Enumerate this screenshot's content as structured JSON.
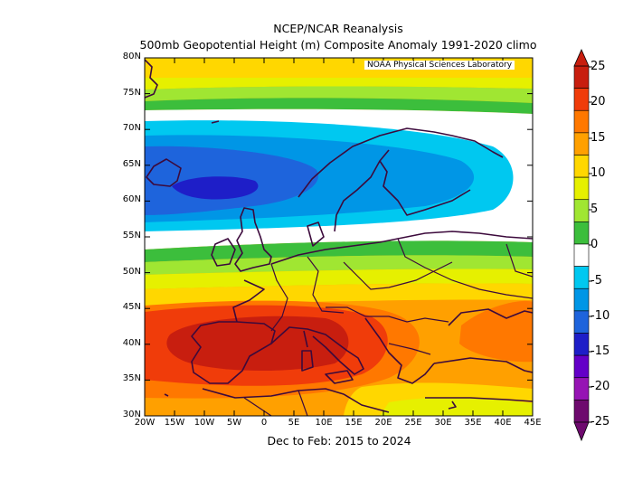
{
  "title": "NCEP/NCAR Reanalysis",
  "subtitle": "500mb Geopotential Height (m) Composite Anomaly 1991-2020 climo",
  "credit": "NOAA Physical Sciences Laboratory",
  "footer": "Dec to Feb: 2015 to 2024",
  "lon_ticks": [
    "20W",
    "15W",
    "10W",
    "5W",
    "0",
    "5E",
    "10E",
    "15E",
    "20E",
    "25E",
    "30E",
    "35E",
    "40E",
    "45E"
  ],
  "lat_ticks": [
    "80N",
    "75N",
    "70N",
    "65N",
    "60N",
    "55N",
    "50N",
    "45N",
    "40N",
    "35N",
    "30N"
  ],
  "colorbar": {
    "labels": [
      "25",
      "20",
      "15",
      "10",
      "5",
      "0",
      "-5",
      "-10",
      "-15",
      "-20",
      "-25"
    ],
    "bins": [
      {
        "range": "20 to 25",
        "color": "#c81e0f"
      },
      {
        "range": "15 to 20",
        "color": "#f03c0a"
      },
      {
        "range": "12.5 to 15",
        "color": "#ff7800"
      },
      {
        "range": "10 to 12.5",
        "color": "#ffa000"
      },
      {
        "range": "7.5 to 10",
        "color": "#ffd700"
      },
      {
        "range": "5 to 7.5",
        "color": "#e6f000"
      },
      {
        "range": "2.5 to 5",
        "color": "#a0e632"
      },
      {
        "range": "0 to 2.5",
        "color": "#3cbe3c"
      },
      {
        "range": "-2.5 to 0",
        "color": "#ffffff"
      },
      {
        "range": "-5 to -2.5",
        "color": "#00c8f0"
      },
      {
        "range": "-7.5 to -5",
        "color": "#0096e6"
      },
      {
        "range": "-10 to -7.5",
        "color": "#1e64dc"
      },
      {
        "range": "-12.5 to -10",
        "color": "#1e1ec8"
      },
      {
        "range": "-15 to -12.5",
        "color": "#6400c8"
      },
      {
        "range": "-20 to -15",
        "color": "#9614b4"
      },
      {
        "range": "-25 to -20",
        "color": "#6e0a6e"
      }
    ]
  },
  "coastline_color": "#3c0a3c"
}
